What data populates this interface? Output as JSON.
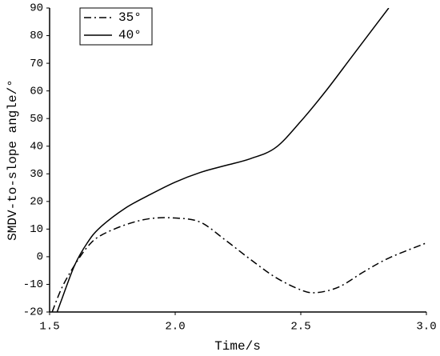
{
  "chart_data": {
    "type": "line",
    "xlabel": "Time/s",
    "ylabel": "SMDV-to-slope angle/°",
    "xlim": [
      1.5,
      3.0
    ],
    "xticks": [
      1.5,
      {
        "value": 2,
        "label": "2.0"
      },
      2.5,
      {
        "value": 3,
        "label": "3.0"
      }
    ],
    "ylim": [
      -20,
      90
    ],
    "yticks": [
      -20,
      -10,
      0,
      10,
      20,
      30,
      40,
      50,
      60,
      70,
      80,
      90
    ],
    "grid": false,
    "legend": "upper left",
    "series": [
      {
        "name": "35°",
        "color": "#000000",
        "dash": "dashdot",
        "x": [
          1.51,
          1.55,
          1.6,
          1.65,
          1.7,
          1.8,
          1.9,
          2.0,
          2.1,
          2.2,
          2.3,
          2.4,
          2.5,
          2.56,
          2.65,
          2.75,
          2.85,
          3.0
        ],
        "values": [
          -20,
          -11,
          -3,
          3.5,
          7.5,
          11.5,
          13.8,
          14,
          12.5,
          6,
          -1,
          -7.5,
          -12,
          -13,
          -11,
          -5.5,
          -0.5,
          5
        ]
      },
      {
        "name": "40°",
        "color": "#000000",
        "dash": "solid",
        "x": [
          1.53,
          1.55,
          1.6,
          1.65,
          1.7,
          1.8,
          1.9,
          2.0,
          2.1,
          2.2,
          2.3,
          2.4,
          2.5,
          2.6,
          2.7,
          2.8,
          2.85
        ],
        "values": [
          -20,
          -15,
          -3,
          5,
          10.5,
          17.5,
          22.5,
          27,
          30.5,
          33,
          35.5,
          39.5,
          49,
          60,
          72,
          84,
          90
        ]
      }
    ]
  }
}
